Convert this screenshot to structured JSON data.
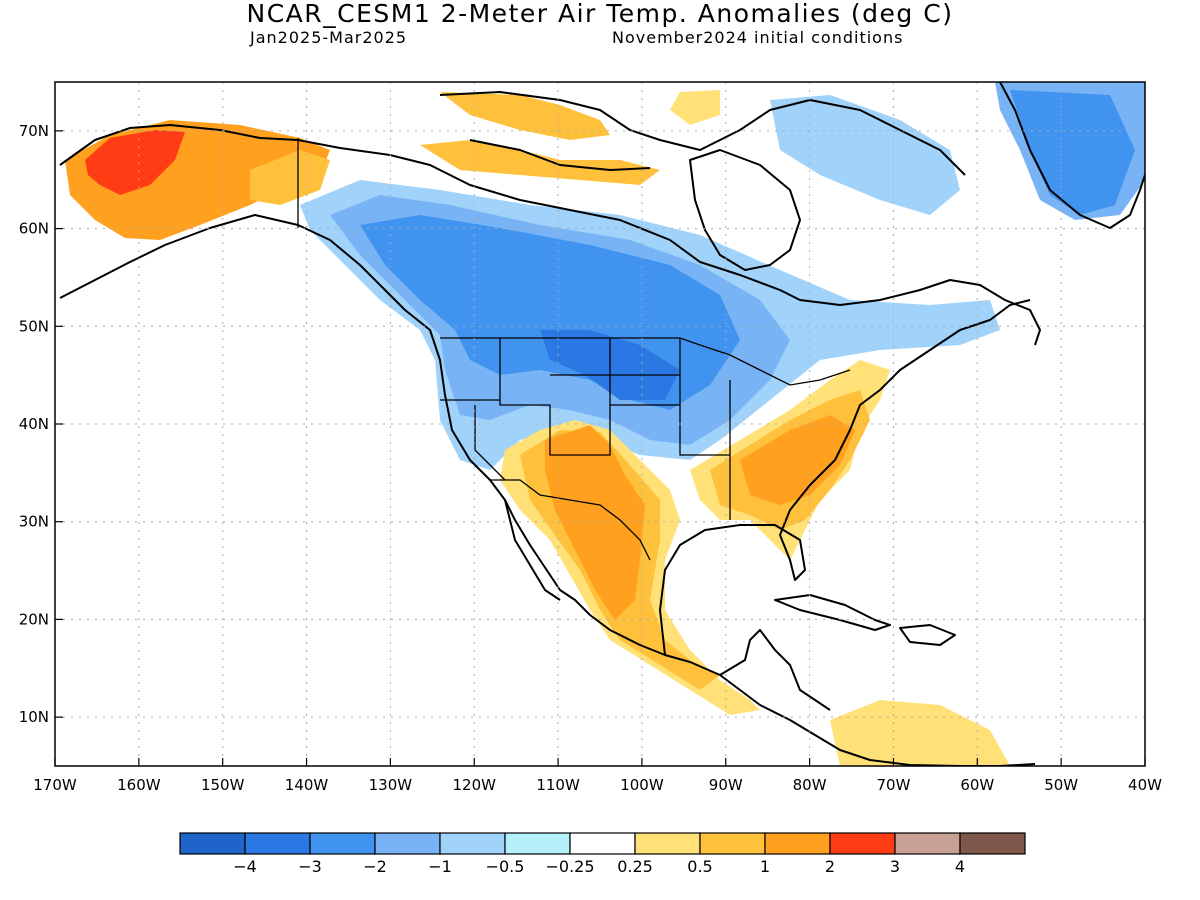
{
  "title": "NCAR_CESM1 2-Meter Air Temp. Anomalies (deg C)",
  "period": "Jan2025-Mar2025",
  "init": "November2024 initial conditions",
  "lat_labels": [
    "70N",
    "60N",
    "50N",
    "40N",
    "30N",
    "20N",
    "10N"
  ],
  "lon_labels": [
    "170W",
    "160W",
    "150W",
    "140W",
    "130W",
    "120W",
    "110W",
    "100W",
    "90W",
    "80W",
    "70W",
    "60W",
    "50W",
    "40W"
  ],
  "colorbar": {
    "colors": [
      "#1f64c8",
      "#2b78e4",
      "#4193f0",
      "#78b4f5",
      "#a0d2fa",
      "#b4f0fa",
      "#ffffff",
      "#ffe178",
      "#ffc03c",
      "#ffa01e",
      "#ff3c14",
      "#c8a096",
      "#80584b"
    ],
    "labels": [
      "-4",
      "-3",
      "-2",
      "-1",
      "-0.5",
      "-0.25",
      "0.25",
      "0.5",
      "1",
      "2",
      "3",
      "4"
    ]
  },
  "palette": {
    "cool_strong": "#2b78e4",
    "cool": "#4193f0",
    "cool_light": "#78b4f5",
    "cool_pale": "#a0d2fa",
    "cool_faint": "#b4f0fa",
    "warm_faint": "#ffe178",
    "warm": "#ffc03c",
    "warm_strong": "#ffa01e",
    "hot": "#ff3c14"
  }
}
